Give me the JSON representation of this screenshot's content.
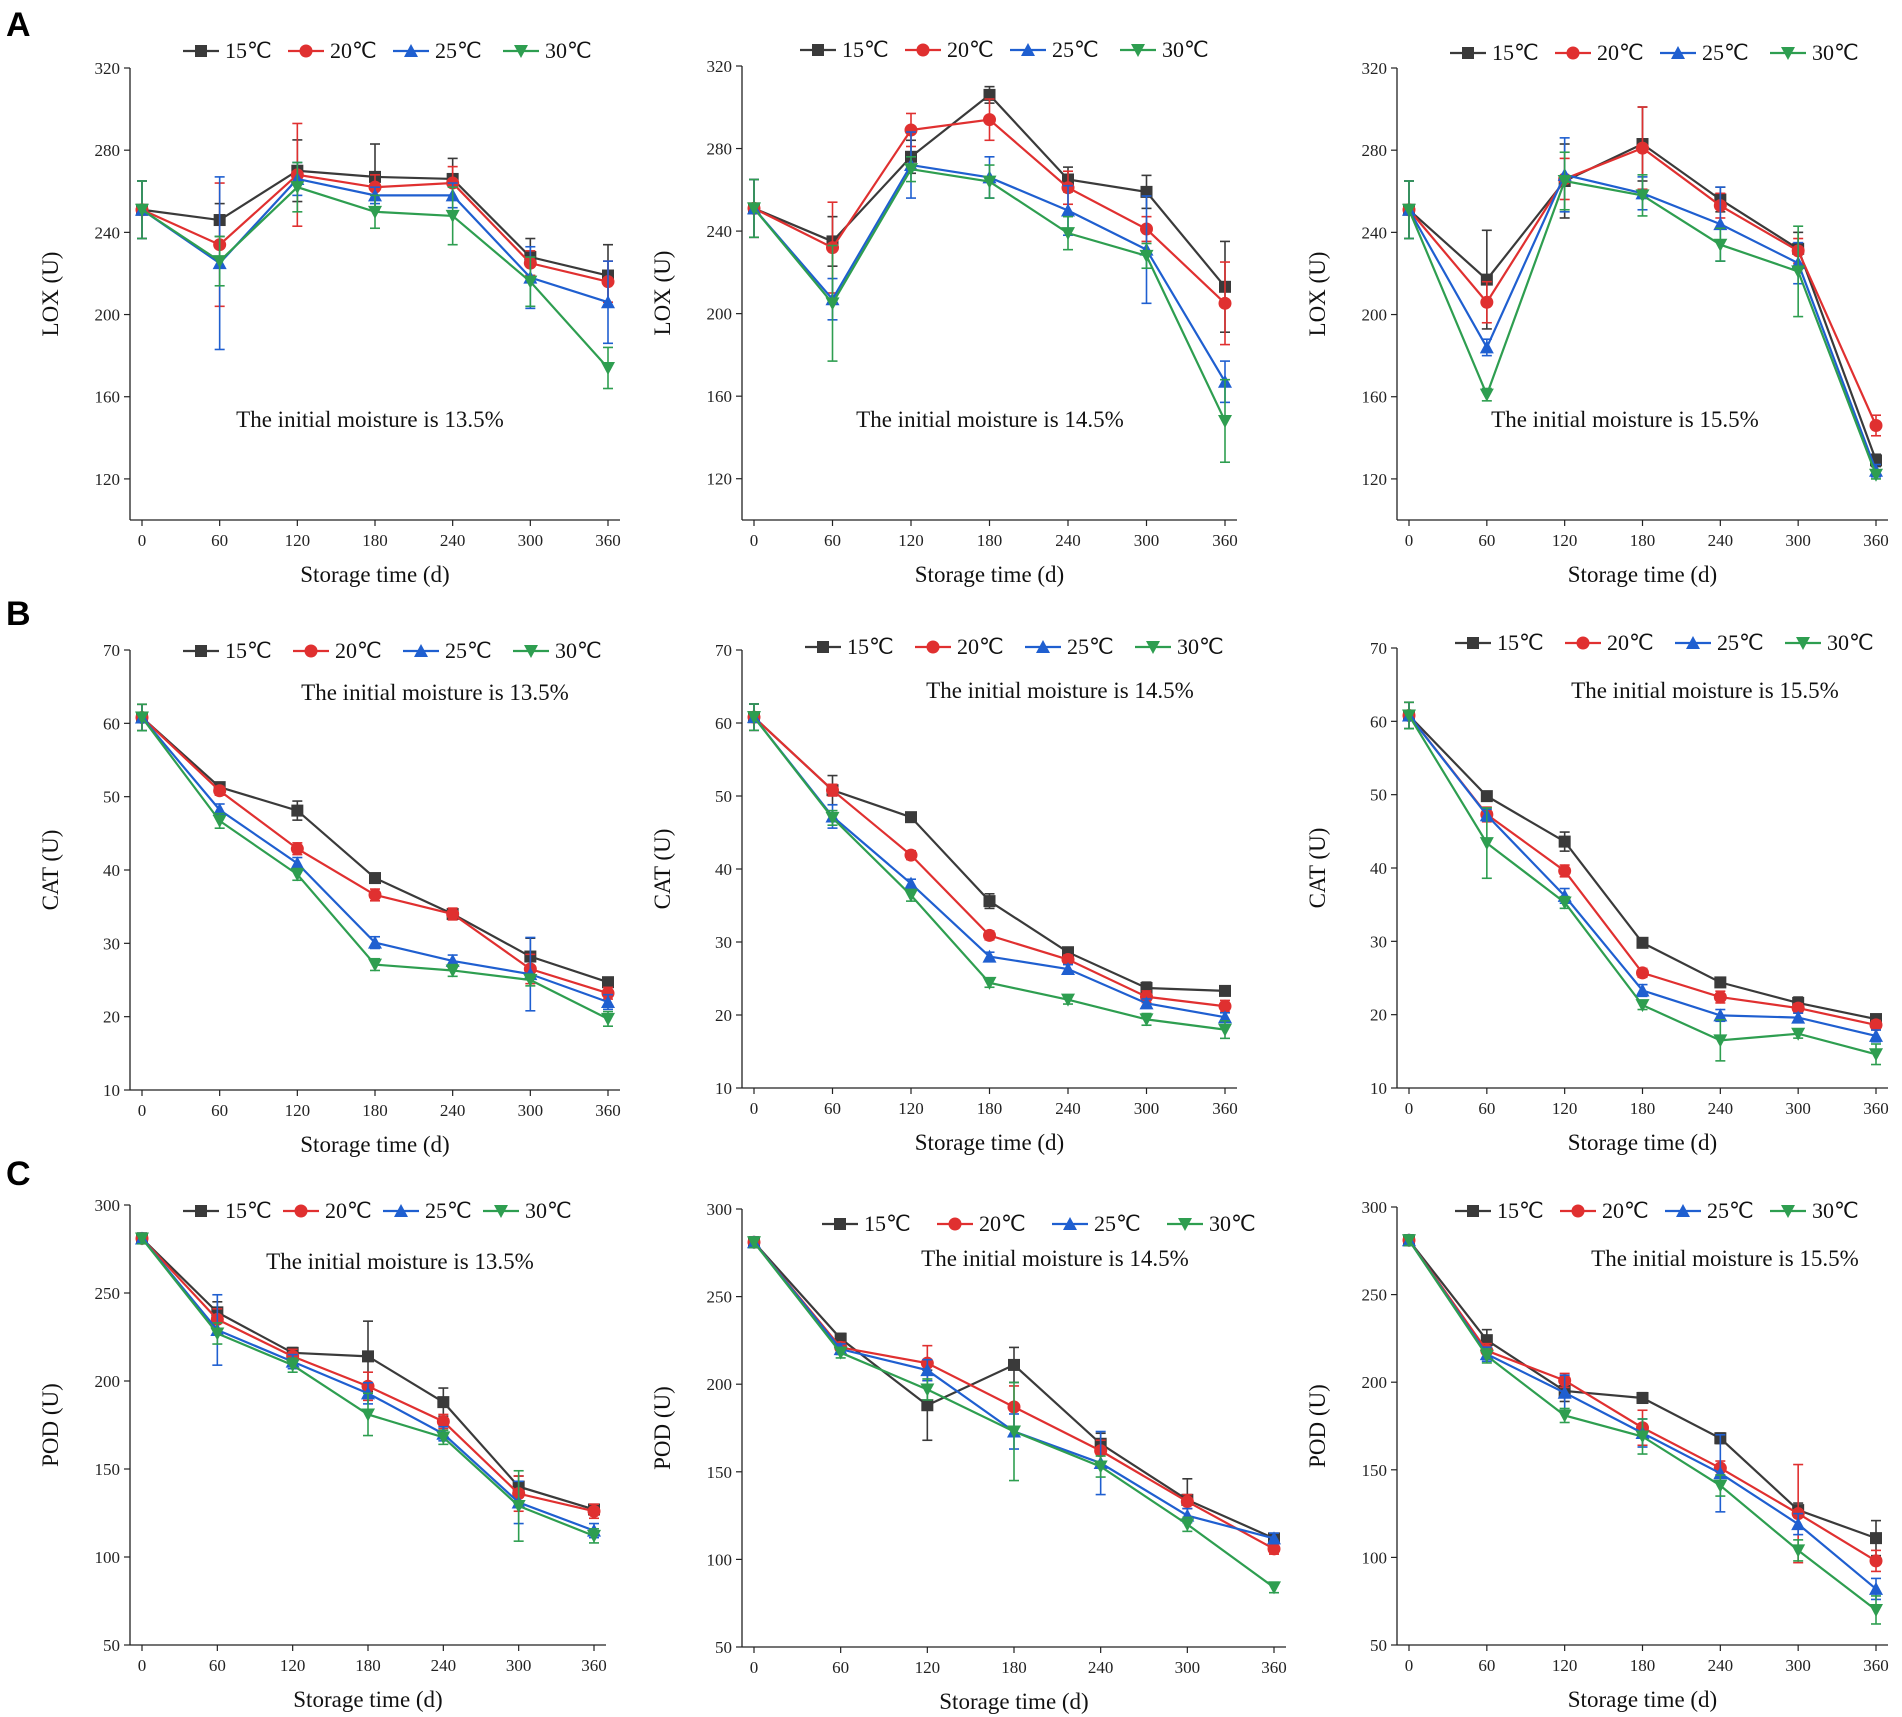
{
  "figure": {
    "panel_labels": [
      "A",
      "B",
      "C"
    ]
  },
  "colors": {
    "15C": "#3a3a3a",
    "20C": "#e03030",
    "25C": "#1f5fd0",
    "30C": "#2e9e50"
  },
  "chart_data": [
    {
      "type": "line",
      "panel": "A",
      "title": "",
      "xlabel": "Storage time (d)",
      "ylabel": "LOX (U)",
      "annotation": "The initial moisture is 13.5%",
      "x": [
        0,
        60,
        120,
        180,
        240,
        300,
        360
      ],
      "xticks": [
        "0",
        "60",
        "120",
        "180",
        "240",
        "300",
        "360"
      ],
      "ylim": [
        100,
        320
      ],
      "yticks": [
        "120",
        "160",
        "200",
        "240",
        "280",
        "320"
      ],
      "legend_position": "top",
      "series": [
        {
          "name": "15℃",
          "marker": "square",
          "values": [
            251,
            246,
            270,
            267,
            266,
            228,
            219
          ],
          "errors": [
            14,
            8,
            15,
            16,
            10,
            9,
            15
          ]
        },
        {
          "name": "20℃",
          "marker": "circle",
          "values": [
            251,
            234,
            268,
            262,
            264,
            225,
            216
          ],
          "errors": [
            14,
            30,
            25,
            6,
            8,
            6,
            10
          ]
        },
        {
          "name": "25℃",
          "marker": "triangle-up",
          "values": [
            251,
            225,
            266,
            258,
            258,
            218,
            206
          ],
          "errors": [
            14,
            42,
            8,
            4,
            6,
            15,
            20
          ]
        },
        {
          "name": "30℃",
          "marker": "triangle-down",
          "values": [
            251,
            226,
            262,
            250,
            248,
            216,
            174
          ],
          "errors": [
            14,
            12,
            12,
            8,
            14,
            12,
            10
          ]
        }
      ]
    },
    {
      "type": "line",
      "panel": "A",
      "title": "",
      "xlabel": "Storage time (d)",
      "ylabel": "LOX (U)",
      "annotation": "The initial moisture is 14.5%",
      "x": [
        0,
        60,
        120,
        180,
        240,
        300,
        360
      ],
      "xticks": [
        "0",
        "60",
        "120",
        "180",
        "240",
        "300",
        "360"
      ],
      "ylim": [
        100,
        320
      ],
      "yticks": [
        "120",
        "160",
        "200",
        "240",
        "280",
        "320"
      ],
      "legend_position": "top",
      "series": [
        {
          "name": "15℃",
          "marker": "square",
          "values": [
            251,
            235,
            276,
            306,
            265,
            259,
            213
          ],
          "errors": [
            14,
            12,
            8,
            4,
            6,
            8,
            22
          ]
        },
        {
          "name": "20℃",
          "marker": "circle",
          "values": [
            251,
            232,
            289,
            294,
            261,
            241,
            205
          ],
          "errors": [
            14,
            22,
            8,
            10,
            8,
            6,
            20
          ]
        },
        {
          "name": "25℃",
          "marker": "triangle-up",
          "values": [
            251,
            207,
            272,
            266,
            250,
            231,
            167
          ],
          "errors": [
            14,
            10,
            16,
            10,
            12,
            26,
            10
          ]
        },
        {
          "name": "30℃",
          "marker": "triangle-down",
          "values": [
            251,
            205,
            270,
            264,
            239,
            228,
            148
          ],
          "errors": [
            14,
            28,
            6,
            8,
            8,
            6,
            20
          ]
        }
      ]
    },
    {
      "type": "line",
      "panel": "A",
      "title": "",
      "xlabel": "Storage time (d)",
      "ylabel": "LOX (U)",
      "annotation": "The initial moisture is 15.5%",
      "x": [
        0,
        60,
        120,
        180,
        240,
        300,
        360
      ],
      "xticks": [
        "0",
        "60",
        "120",
        "180",
        "240",
        "300",
        "360"
      ],
      "ylim": [
        100,
        320
      ],
      "yticks": [
        "120",
        "160",
        "200",
        "240",
        "280",
        "320"
      ],
      "legend_position": "top",
      "series": [
        {
          "name": "15℃",
          "marker": "square",
          "values": [
            251,
            217,
            265,
            283,
            256,
            232,
            129
          ],
          "errors": [
            14,
            24,
            18,
            18,
            6,
            8,
            3
          ]
        },
        {
          "name": "20℃",
          "marker": "circle",
          "values": [
            251,
            206,
            266,
            281,
            253,
            231,
            146
          ],
          "errors": [
            14,
            10,
            10,
            20,
            6,
            6,
            5
          ]
        },
        {
          "name": "25℃",
          "marker": "triangle-up",
          "values": [
            251,
            184,
            268,
            259,
            244,
            225,
            124
          ],
          "errors": [
            14,
            4,
            18,
            8,
            18,
            10,
            3
          ]
        },
        {
          "name": "30℃",
          "marker": "triangle-down",
          "values": [
            251,
            161,
            265,
            258,
            234,
            221,
            122
          ],
          "errors": [
            14,
            3,
            14,
            10,
            8,
            22,
            2
          ]
        }
      ]
    },
    {
      "type": "line",
      "panel": "B",
      "title": "",
      "xlabel": "Storage time (d)",
      "ylabel": "CAT (U)",
      "annotation": "The initial moisture is 13.5%",
      "x": [
        0,
        60,
        120,
        180,
        240,
        300,
        360
      ],
      "xticks": [
        "0",
        "60",
        "120",
        "180",
        "240",
        "300",
        "360"
      ],
      "ylim": [
        10,
        70
      ],
      "yticks": [
        "10",
        "20",
        "30",
        "40",
        "50",
        "60",
        "70"
      ],
      "legend_position": "top",
      "series": [
        {
          "name": "15℃",
          "marker": "square",
          "values": [
            60.8,
            51.3,
            48.1,
            38.9,
            34.0,
            28.2,
            24.7
          ],
          "errors": [
            1.8,
            0.6,
            1.3,
            0.4,
            0.6,
            2.5,
            0.6
          ]
        },
        {
          "name": "20℃",
          "marker": "circle",
          "values": [
            60.8,
            50.8,
            42.9,
            36.6,
            34.0,
            26.5,
            23.2
          ],
          "errors": [
            1.8,
            0.6,
            0.8,
            0.8,
            0.8,
            2.0,
            0.8
          ]
        },
        {
          "name": "25℃",
          "marker": "triangle-up",
          "values": [
            60.8,
            48.2,
            40.9,
            30.1,
            27.6,
            25.8,
            22.0
          ],
          "errors": [
            1.8,
            0.8,
            0.8,
            0.8,
            0.8,
            5.0,
            1.0
          ]
        },
        {
          "name": "30℃",
          "marker": "triangle-down",
          "values": [
            60.8,
            46.7,
            39.4,
            27.1,
            26.3,
            25.0,
            19.7
          ],
          "errors": [
            1.8,
            1.0,
            0.8,
            0.8,
            0.8,
            0.8,
            1.0
          ]
        }
      ]
    },
    {
      "type": "line",
      "panel": "B",
      "title": "",
      "xlabel": "Storage time (d)",
      "ylabel": "CAT (U)",
      "annotation": "The initial moisture is 14.5%",
      "x": [
        0,
        60,
        120,
        180,
        240,
        300,
        360
      ],
      "xticks": [
        "0",
        "60",
        "120",
        "180",
        "240",
        "300",
        "360"
      ],
      "ylim": [
        10,
        70
      ],
      "yticks": [
        "10",
        "20",
        "30",
        "40",
        "50",
        "60",
        "70"
      ],
      "legend_position": "top",
      "series": [
        {
          "name": "15℃",
          "marker": "square",
          "values": [
            60.8,
            50.8,
            47.1,
            35.6,
            28.6,
            23.7,
            23.3
          ],
          "errors": [
            1.8,
            2.0,
            0.5,
            1.0,
            0.6,
            0.8,
            0.5
          ]
        },
        {
          "name": "20℃",
          "marker": "circle",
          "values": [
            60.8,
            50.8,
            41.9,
            30.9,
            27.6,
            22.5,
            21.2
          ],
          "errors": [
            1.8,
            0.8,
            0.6,
            0.6,
            0.6,
            0.8,
            0.8
          ]
        },
        {
          "name": "25℃",
          "marker": "triangle-up",
          "values": [
            60.8,
            47.2,
            38.0,
            28.0,
            26.3,
            21.6,
            19.7
          ],
          "errors": [
            1.8,
            1.6,
            0.6,
            0.6,
            0.6,
            0.6,
            0.6
          ]
        },
        {
          "name": "30℃",
          "marker": "triangle-down",
          "values": [
            60.8,
            47.0,
            36.4,
            24.4,
            22.1,
            19.4,
            18.0
          ],
          "errors": [
            1.8,
            1.0,
            0.8,
            0.6,
            0.6,
            0.8,
            1.2
          ]
        }
      ]
    },
    {
      "type": "line",
      "panel": "B",
      "title": "",
      "xlabel": "Storage time (d)",
      "ylabel": "CAT (U)",
      "annotation": "The initial moisture is 15.5%",
      "x": [
        0,
        60,
        120,
        180,
        240,
        300,
        360
      ],
      "xticks": [
        "0",
        "60",
        "120",
        "180",
        "240",
        "300",
        "360"
      ],
      "ylim": [
        10,
        70
      ],
      "yticks": [
        "10",
        "20",
        "30",
        "40",
        "50",
        "60",
        "70"
      ],
      "legend_position": "top",
      "series": [
        {
          "name": "15℃",
          "marker": "square",
          "values": [
            60.8,
            49.8,
            43.6,
            29.8,
            24.4,
            21.6,
            19.4
          ],
          "errors": [
            1.8,
            0.6,
            1.3,
            0.6,
            0.6,
            0.8,
            0.6
          ]
        },
        {
          "name": "20℃",
          "marker": "circle",
          "values": [
            60.8,
            47.3,
            39.6,
            25.7,
            22.4,
            20.9,
            18.6
          ],
          "errors": [
            1.8,
            1.0,
            0.8,
            0.6,
            0.8,
            0.6,
            0.6
          ]
        },
        {
          "name": "25℃",
          "marker": "triangle-up",
          "values": [
            60.8,
            47.2,
            36.2,
            23.3,
            19.9,
            19.6,
            17.1
          ],
          "errors": [
            1.8,
            0.8,
            1.0,
            0.8,
            0.8,
            0.6,
            0.8
          ]
        },
        {
          "name": "30℃",
          "marker": "triangle-down",
          "values": [
            60.8,
            43.4,
            35.3,
            21.3,
            16.5,
            17.4,
            14.6
          ],
          "errors": [
            1.8,
            4.8,
            0.8,
            0.6,
            2.8,
            0.6,
            1.4
          ]
        }
      ]
    },
    {
      "type": "line",
      "panel": "C",
      "title": "",
      "xlabel": "Storage time (d)",
      "ylabel": "POD (U)",
      "annotation": "The initial moisture is 13.5%",
      "x": [
        0,
        60,
        120,
        180,
        240,
        300,
        360
      ],
      "xticks": [
        "0",
        "60",
        "120",
        "180",
        "240",
        "300",
        "360"
      ],
      "ylim": [
        50,
        300
      ],
      "yticks": [
        "50",
        "100",
        "150",
        "200",
        "250",
        "300"
      ],
      "legend_position": "top",
      "series": [
        {
          "name": "15℃",
          "marker": "square",
          "values": [
            281,
            239,
            216,
            214,
            188,
            140,
            127
          ],
          "errors": [
            3,
            6,
            3,
            20,
            8,
            6,
            3
          ]
        },
        {
          "name": "20℃",
          "marker": "circle",
          "values": [
            281,
            235,
            214,
            197,
            177,
            136,
            126
          ],
          "errors": [
            3,
            6,
            4,
            8,
            4,
            10,
            4
          ]
        },
        {
          "name": "25℃",
          "marker": "triangle-up",
          "values": [
            281,
            229,
            211,
            193,
            170,
            131,
            115
          ],
          "errors": [
            3,
            20,
            4,
            6,
            4,
            12,
            4
          ]
        },
        {
          "name": "30℃",
          "marker": "triangle-down",
          "values": [
            281,
            227,
            209,
            181,
            168,
            129,
            112
          ],
          "errors": [
            3,
            6,
            4,
            12,
            4,
            20,
            4
          ]
        }
      ]
    },
    {
      "type": "line",
      "panel": "C",
      "title": "",
      "xlabel": "Storage time (d)",
      "ylabel": "POD (U)",
      "annotation": "The initial moisture is 14.5%",
      "x": [
        0,
        60,
        120,
        180,
        240,
        300,
        360
      ],
      "xticks": [
        "0",
        "60",
        "120",
        "180",
        "240",
        "300",
        "360"
      ],
      "ylim": [
        50,
        300
      ],
      "yticks": [
        "50",
        "100",
        "150",
        "200",
        "250",
        "300"
      ],
      "legend_position": "top",
      "series": [
        {
          "name": "15℃",
          "marker": "square",
          "values": [
            281,
            226,
            188,
            211,
            166,
            134,
            112
          ],
          "errors": [
            3,
            3,
            20,
            10,
            6,
            12,
            2
          ]
        },
        {
          "name": "20℃",
          "marker": "circle",
          "values": [
            281,
            221,
            212,
            187,
            162,
            133,
            106
          ],
          "errors": [
            3,
            3,
            10,
            12,
            6,
            4,
            3
          ]
        },
        {
          "name": "25℃",
          "marker": "triangle-up",
          "values": [
            281,
            220,
            208,
            173,
            155,
            125,
            112
          ],
          "errors": [
            3,
            3,
            6,
            10,
            18,
            4,
            3
          ]
        },
        {
          "name": "30℃",
          "marker": "triangle-down",
          "values": [
            281,
            218,
            197,
            173,
            153,
            120,
            84
          ],
          "errors": [
            3,
            3,
            6,
            28,
            6,
            4,
            3
          ]
        }
      ]
    },
    {
      "type": "line",
      "panel": "C",
      "title": "",
      "xlabel": "Storage time (d)",
      "ylabel": "POD (U)",
      "annotation": "The initial moisture is 15.5%",
      "x": [
        0,
        60,
        120,
        180,
        240,
        300,
        360
      ],
      "xticks": [
        "0",
        "60",
        "120",
        "180",
        "240",
        "300",
        "360"
      ],
      "ylim": [
        50,
        300
      ],
      "yticks": [
        "50",
        "100",
        "150",
        "200",
        "250",
        "300"
      ],
      "legend_position": "top",
      "series": [
        {
          "name": "15℃",
          "marker": "square",
          "values": [
            281,
            224,
            195,
            191,
            168,
            127,
            111
          ],
          "errors": [
            3,
            6,
            6,
            3,
            3,
            4,
            10
          ]
        },
        {
          "name": "20℃",
          "marker": "circle",
          "values": [
            281,
            218,
            201,
            174,
            151,
            125,
            98
          ],
          "errors": [
            3,
            4,
            4,
            10,
            4,
            28,
            6
          ]
        },
        {
          "name": "25℃",
          "marker": "triangle-up",
          "values": [
            281,
            216,
            194,
            171,
            148,
            119,
            82
          ],
          "errors": [
            3,
            4,
            10,
            8,
            22,
            6,
            6
          ]
        },
        {
          "name": "30℃",
          "marker": "triangle-down",
          "values": [
            281,
            215,
            181,
            169,
            141,
            104,
            70
          ],
          "errors": [
            3,
            4,
            4,
            10,
            6,
            6,
            8
          ]
        }
      ]
    }
  ]
}
